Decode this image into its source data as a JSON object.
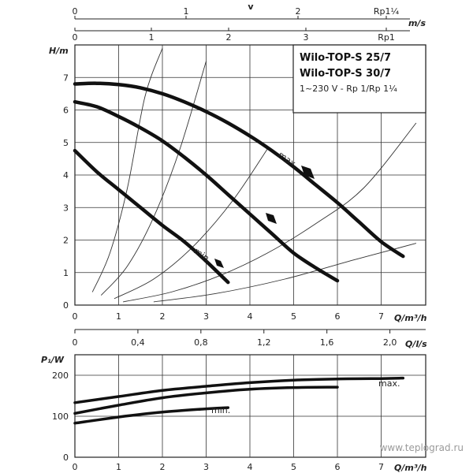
{
  "top_axes": {
    "v_label": "v",
    "v_ticks_rp114": [
      "0",
      "1",
      "2",
      "Rp1¼"
    ],
    "v_ticks_rp1": [
      "0",
      "1",
      "2",
      "3",
      "Rp1"
    ],
    "ms_label": "m/s"
  },
  "legend": {
    "line1": "Wilo-TOP-S 25/7",
    "line2": "Wilo-TOP-S 30/7",
    "line3": "1~230 V - Rp 1/Rp 1¼"
  },
  "annotations": {
    "max": "max.",
    "min": "min.",
    "max_power": "max.",
    "min_power": "min."
  },
  "watermark": "www.teplograd.ru",
  "chart_data": [
    {
      "type": "line",
      "ylabel": "H/m",
      "xlabel": "Q/m³/h",
      "xlim": [
        0,
        8
      ],
      "ylim": [
        0,
        8
      ],
      "x_ticks": [
        "0",
        "1",
        "2",
        "3",
        "4",
        "5",
        "6",
        "7"
      ],
      "y_ticks": [
        "0",
        "1",
        "2",
        "3",
        "4",
        "5",
        "6",
        "7"
      ],
      "grid": true,
      "series": [
        {
          "name": "max.",
          "x": [
            0,
            0.5,
            1,
            1.5,
            2,
            2.5,
            3,
            3.5,
            4,
            4.5,
            5,
            5.5,
            6,
            6.5,
            7,
            7.5
          ],
          "y": [
            6.8,
            6.82,
            6.78,
            6.68,
            6.5,
            6.25,
            5.95,
            5.6,
            5.2,
            4.75,
            4.25,
            3.7,
            3.15,
            2.55,
            1.95,
            1.5
          ]
        },
        {
          "x": [
            0,
            0.5,
            1,
            1.5,
            2,
            2.5,
            3,
            3.5,
            4,
            4.5,
            5,
            5.5,
            6
          ],
          "y": [
            6.25,
            6.1,
            5.8,
            5.45,
            5.05,
            4.55,
            4.0,
            3.4,
            2.8,
            2.2,
            1.6,
            1.15,
            0.75
          ]
        },
        {
          "name": "min.",
          "x": [
            0,
            0.5,
            1,
            1.5,
            2,
            2.5,
            3,
            3.5
          ],
          "y": [
            4.75,
            4.1,
            3.55,
            3.0,
            2.45,
            1.95,
            1.35,
            0.7
          ]
        }
      ],
      "system_curves": [
        {
          "x": [
            0.4,
            0.8,
            1.2,
            1.6,
            2.0
          ],
          "y": [
            0.4,
            1.6,
            3.6,
            6.4,
            7.9
          ]
        },
        {
          "x": [
            0.6,
            1.2,
            1.8,
            2.4,
            3.0
          ],
          "y": [
            0.3,
            1.2,
            2.7,
            4.8,
            7.5
          ]
        },
        {
          "x": [
            0.9,
            1.8,
            2.7,
            3.6,
            4.4
          ],
          "y": [
            0.2,
            0.8,
            1.8,
            3.2,
            4.8
          ]
        },
        {
          "x": [
            1.1,
            2.2,
            3.3,
            4.4,
            5.5,
            6.6,
            7.8
          ],
          "y": [
            0.1,
            0.4,
            0.9,
            1.6,
            2.5,
            3.6,
            5.6
          ]
        },
        {
          "x": [
            1.8,
            3.2,
            4.8,
            6.4,
            7.8
          ],
          "y": [
            0.1,
            0.35,
            0.8,
            1.4,
            1.9
          ]
        }
      ],
      "second_x_axis": {
        "label": "Q/l/s",
        "ticks": [
          "0",
          "0,4",
          "0,8",
          "1,2",
          "1,6",
          "2,0"
        ]
      }
    },
    {
      "type": "line",
      "ylabel": "P₁/W",
      "xlabel": "Q/m³/h",
      "xlim": [
        0,
        8
      ],
      "ylim": [
        0,
        250
      ],
      "x_ticks": [
        "0",
        "1",
        "2",
        "3",
        "4",
        "5",
        "6",
        "7"
      ],
      "y_ticks": [
        "0",
        "100",
        "200"
      ],
      "grid": true,
      "series": [
        {
          "name": "max.",
          "x": [
            0,
            1,
            2,
            3,
            4,
            5,
            6,
            7,
            7.5
          ],
          "y": [
            133,
            148,
            163,
            173,
            182,
            188,
            191,
            192,
            193
          ]
        },
        {
          "x": [
            0,
            1,
            2,
            3,
            4,
            5,
            6
          ],
          "y": [
            107,
            127,
            145,
            157,
            166,
            170,
            171
          ]
        },
        {
          "name": "min.",
          "x": [
            0,
            1,
            2,
            3,
            3.5
          ],
          "y": [
            83,
            98,
            110,
            118,
            121
          ]
        }
      ]
    }
  ]
}
